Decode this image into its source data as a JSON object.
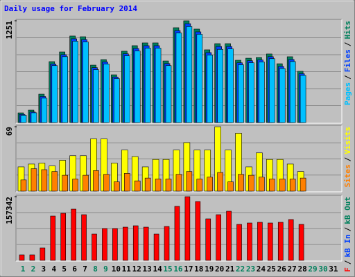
{
  "title": "Daily usage for February 2014",
  "chart_data": [
    {
      "type": "bar",
      "ylim": [
        0,
        1251
      ],
      "yticks": [
        1251
      ],
      "legend_separator": "/",
      "series": [
        {
          "name": "Hits",
          "color": "#00805c",
          "values": [
            119,
            153,
            349,
            749,
            868,
            1064,
            1055,
            706,
            774,
            587,
            877,
            945,
            979,
            979,
            757,
            1166,
            1251,
            1149,
            894,
            970,
            970,
            766,
            791,
            800,
            843,
            723,
            809,
            630,
            null,
            null,
            null
          ]
        },
        {
          "name": "Files",
          "color": "#0040ff",
          "values": [
            100,
            130,
            320,
            720,
            835,
            1030,
            1020,
            675,
            745,
            560,
            845,
            910,
            945,
            945,
            725,
            1130,
            1215,
            1115,
            860,
            935,
            935,
            735,
            760,
            770,
            810,
            690,
            775,
            600,
            null,
            null,
            null
          ]
        },
        {
          "name": "Pages",
          "color": "#00c0ff",
          "values": [
            90,
            120,
            300,
            700,
            810,
            1000,
            990,
            650,
            720,
            540,
            820,
            880,
            915,
            915,
            700,
            1100,
            1180,
            1085,
            830,
            900,
            905,
            710,
            735,
            745,
            785,
            665,
            750,
            580,
            null,
            null,
            null
          ]
        }
      ]
    },
    {
      "type": "bar",
      "ylim": [
        0,
        69
      ],
      "yticks": [
        69
      ],
      "legend_separator": "/",
      "series": [
        {
          "name": "Visits",
          "color": "#ffff00",
          "values": [
            26,
            29,
            30,
            27,
            33,
            38,
            38,
            56,
            56,
            30,
            44,
            37,
            26,
            34,
            34,
            44,
            52,
            44,
            44,
            69,
            44,
            62,
            26,
            41,
            34,
            34,
            29,
            21,
            null,
            null,
            null
          ]
        },
        {
          "name": "Sites",
          "color": "#ff8000",
          "values": [
            12,
            24,
            23,
            21,
            17,
            13,
            17,
            22,
            18,
            10,
            19,
            11,
            14,
            13,
            13,
            18,
            21,
            13,
            15,
            20,
            10,
            18,
            17,
            15,
            13,
            13,
            13,
            14,
            null,
            null,
            null
          ]
        }
      ]
    },
    {
      "type": "bar",
      "ylim": [
        0,
        157342
      ],
      "yticks": [
        157342
      ],
      "legend_separator": "/",
      "categories": [
        "1",
        "2",
        "3",
        "4",
        "5",
        "6",
        "7",
        "8",
        "9",
        "10",
        "11",
        "12",
        "13",
        "14",
        "15",
        "16",
        "17",
        "18",
        "19",
        "20",
        "21",
        "22",
        "23",
        "24",
        "25",
        "26",
        "27",
        "28",
        "29",
        "30",
        "31"
      ],
      "category_colors": [
        "#00805c",
        "#00805c",
        "#000000",
        "#000000",
        "#000000",
        "#000000",
        "#000000",
        "#00805c",
        "#00805c",
        "#000000",
        "#000000",
        "#000000",
        "#000000",
        "#000000",
        "#00805c",
        "#00805c",
        "#000000",
        "#000000",
        "#000000",
        "#000000",
        "#000000",
        "#00805c",
        "#00805c",
        "#000000",
        "#000000",
        "#000000",
        "#000000",
        "#000000",
        "#00805c",
        "#00805c",
        "#000000"
      ],
      "series": [
        {
          "name": "kB F",
          "color": "#ff0000",
          "values": [
            13682,
            13682,
            30784,
            109453,
            116294,
            126555,
            112873,
            64988,
            78670,
            78670,
            82090,
            85510,
            82090,
            64988,
            83800,
            133396,
            157342,
            145367,
            102612,
            112873,
            121424,
            88930,
            92351,
            94061,
            92351,
            94061,
            100902,
            88930,
            null,
            null,
            null
          ]
        }
      ],
      "extra_legend": [
        {
          "name": "kB In",
          "color": "#0040ff"
        },
        {
          "name": "kB Out",
          "color": "#00805c"
        }
      ]
    }
  ]
}
